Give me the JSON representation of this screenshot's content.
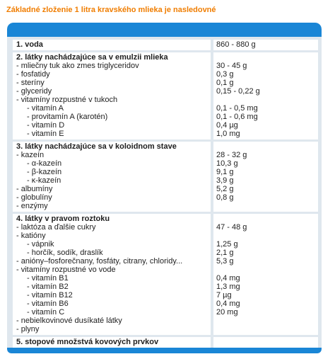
{
  "title": "Základné zloženie 1 litra kravského mlieka je nasledovné",
  "sections": [
    {
      "heading": "1. voda",
      "value": "860 - 880 g",
      "items": []
    },
    {
      "heading": "2. látky nachádzajúce sa v emulzii mlieka",
      "items": [
        {
          "label": "- mliečny tuk ako zmes triglyceridov",
          "value": "30 - 45 g"
        },
        {
          "label": "- fosfatidy",
          "value": "0,3 g"
        },
        {
          "label": "- steríny",
          "value": "0,1 g"
        },
        {
          "label": "- glyceridy",
          "value": "0,15 - 0,22 g"
        },
        {
          "label": "- vitamíny rozpustné v tukoch",
          "sub": [
            {
              "label": "- vitamín A",
              "value": "0,1 - 0,5 mg"
            },
            {
              "label": "- provitamín A (karotén)",
              "value": "0,1 - 0,6 mg"
            },
            {
              "label": "- vitamín D",
              "value": "0,4 µg"
            },
            {
              "label": "- vitamín E",
              "value": "1,0 mg"
            }
          ]
        }
      ]
    },
    {
      "heading": "3. látky nachádzajúce sa v koloidnom stave",
      "items": [
        {
          "label": "- kazeín",
          "value": "28 - 32 g",
          "sub": [
            {
              "label": "- α-kazeín",
              "value": "10,3 g"
            },
            {
              "label": "- β-kazeín",
              "value": "9,1 g"
            },
            {
              "label": "- κ-kazeín",
              "value": "3,9 g"
            }
          ]
        },
        {
          "label": "- albumíny",
          "value": "5,2 g"
        },
        {
          "label": "- globulíny",
          "value": "0,8 g"
        },
        {
          "label": "- enzýmy"
        }
      ]
    },
    {
      "heading": "4. látky v pravom roztoku",
      "items": [
        {
          "label": "- laktóza a ďalšie cukry",
          "value": "47 - 48 g"
        },
        {
          "label": "- katióny",
          "sub": [
            {
              "label": "- vápnik",
              "value": "1,25 g"
            },
            {
              "label": "- horčík, sodík, draslík",
              "value": "2,1 g"
            }
          ]
        },
        {
          "label": "- anióny–fosforečnany, fosfáty, citrany, chloridy...",
          "value": "5,3 g"
        },
        {
          "label": "- vitamíny rozpustné vo vode",
          "sub": [
            {
              "label": "- vitamín B1",
              "value": "0,4 mg"
            },
            {
              "label": "- vitamín B2",
              "value": "1,3 mg"
            },
            {
              "label": "- vitamín B12",
              "value": "7 µg"
            },
            {
              "label": "- vitamín B6",
              "value": "0,4 mg"
            },
            {
              "label": "- vitamín C",
              "value": "20 mg"
            }
          ]
        },
        {
          "label": "- nebielkovinové dusíkaté látky"
        },
        {
          "label": "- plyny"
        }
      ]
    },
    {
      "heading": "5. stopové množstvá kovových prvkov",
      "items": []
    }
  ]
}
